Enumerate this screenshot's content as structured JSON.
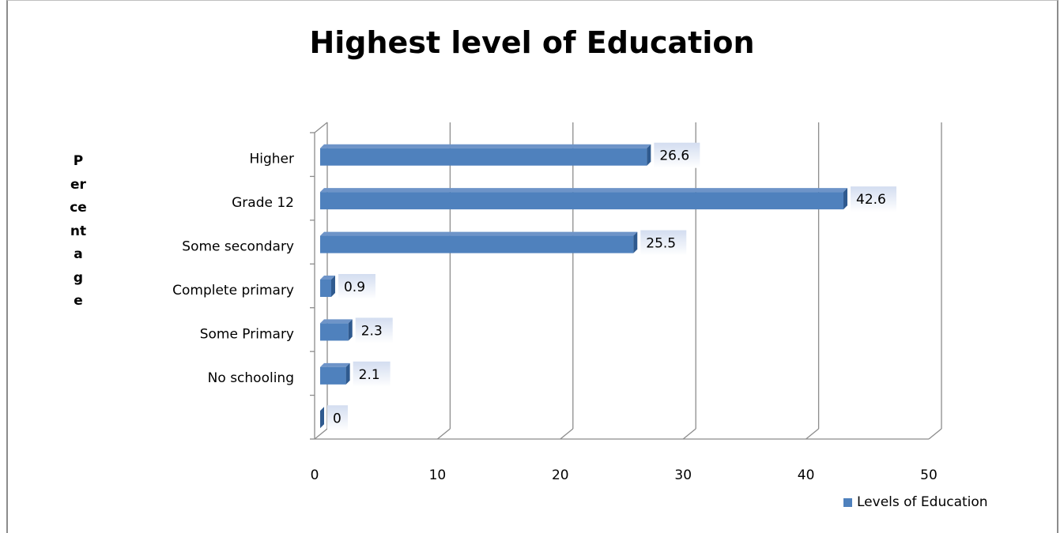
{
  "chart_data": {
    "type": "bar",
    "orientation": "horizontal",
    "title": "Highest level of Education",
    "ylabel": "Percentage",
    "xlabel": "",
    "categories": [
      "Higher",
      "Grade 12",
      "Some secondary",
      "Complete primary",
      "Some Primary",
      "No schooling",
      ""
    ],
    "series": [
      {
        "name": "Levels of Education",
        "values": [
          26.6,
          42.6,
          25.5,
          0.9,
          2.3,
          2.1,
          0
        ],
        "color": "#4f81bd"
      }
    ],
    "data_labels": [
      "26.6",
      "42.6",
      "25.5",
      "0.9",
      "2.3",
      "2.1",
      "0"
    ],
    "xlim": [
      0,
      50
    ],
    "xticks": [
      0,
      10,
      20,
      30,
      40,
      50
    ],
    "grid": true,
    "style": "3d-bar",
    "legend_position": "bottom-right"
  }
}
